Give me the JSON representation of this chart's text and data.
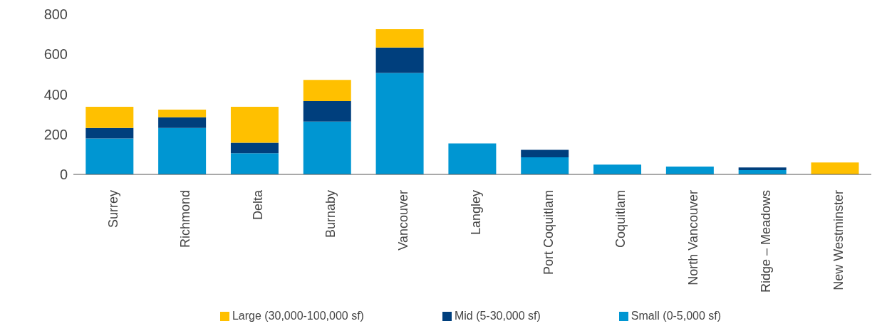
{
  "chart_data": {
    "type": "bar",
    "stacked": true,
    "categories": [
      "Surrey",
      "Richmond",
      "Delta",
      "Burnaby",
      "Vancouver",
      "Langley",
      "Port Coquitlam",
      "Coquitlam",
      "North Vancouver",
      "Ridge – Meadows",
      "New Westminster"
    ],
    "series": [
      {
        "name": "Small (0-5,000 sf)",
        "color": "#0096d2",
        "values": [
          180,
          232,
          106,
          264,
          507,
          155,
          85,
          49,
          39,
          21,
          0
        ]
      },
      {
        "name": "Mid (5-30,000 sf)",
        "color": "#003f7d",
        "values": [
          52,
          53,
          52,
          102,
          127,
          0,
          38,
          0,
          0,
          14,
          0
        ]
      },
      {
        "name": "Large (30,000-100,000 sf)",
        "color": "#ffc000",
        "values": [
          106,
          39,
          180,
          106,
          91,
          0,
          0,
          0,
          0,
          0,
          60
        ]
      }
    ],
    "ylim": [
      0,
      800
    ],
    "yticks": [
      0,
      200,
      400,
      600,
      800
    ],
    "grid": false,
    "legend": "bottom"
  }
}
